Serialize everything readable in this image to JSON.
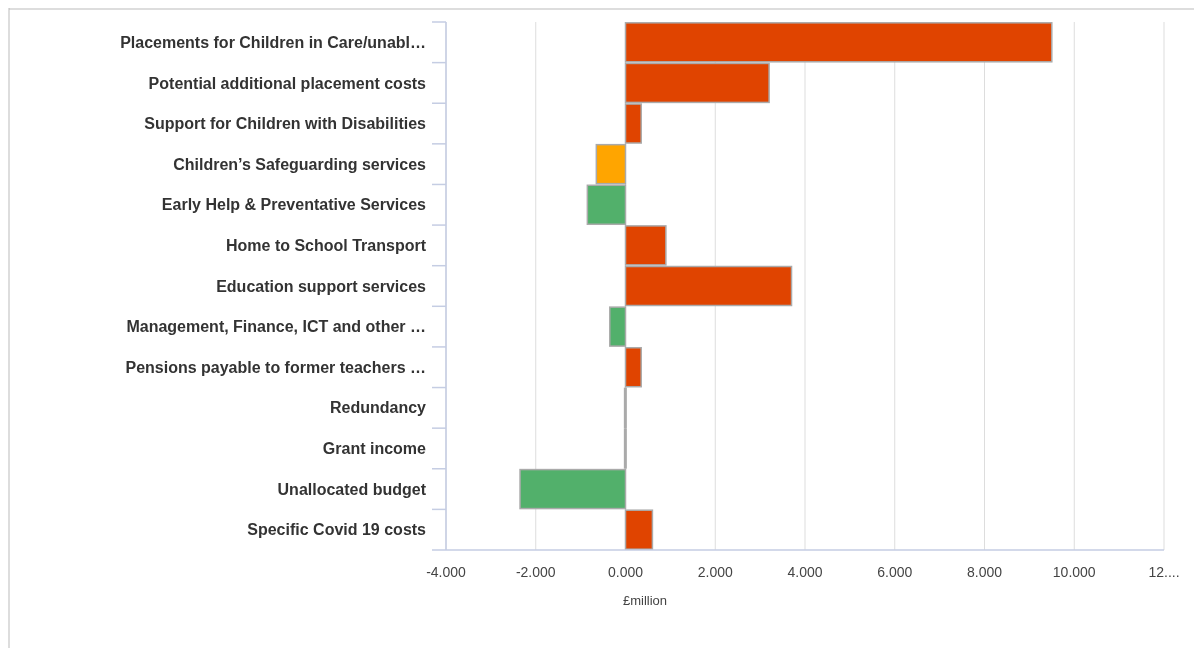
{
  "chart_data": {
    "type": "bar",
    "orientation": "horizontal",
    "xlabel": "£million",
    "categories": [
      "Placements for Children in Care/unabl…",
      "Potential additional placement costs",
      "Support for Children with Disabilities",
      "Children’s Safeguarding services",
      "Early Help & Preventative Services",
      "Home to School Transport",
      "Education support services",
      "Management, Finance, ICT and other …",
      "Pensions payable to former teachers …",
      "Redundancy",
      "Grant income",
      "Unallocated budget",
      "Specific Covid 19 costs"
    ],
    "values": [
      9.5,
      3.2,
      0.35,
      -0.65,
      -0.85,
      0.9,
      3.7,
      -0.35,
      0.35,
      -0.02,
      -0.02,
      -2.35,
      0.6
    ],
    "colors": [
      "#e04400",
      "#e04400",
      "#e04400",
      "#ffa500",
      "#52b06b",
      "#e04400",
      "#e04400",
      "#52b06b",
      "#e04400",
      "#aaaaaa",
      "#aaaaaa",
      "#52b06b",
      "#e04400"
    ],
    "xlim": [
      -4,
      12
    ],
    "xticks": [
      {
        "value": -4,
        "label": "-4.000"
      },
      {
        "value": -2,
        "label": "-2.000"
      },
      {
        "value": 0,
        "label": "0.000"
      },
      {
        "value": 2,
        "label": "2.000"
      },
      {
        "value": 4,
        "label": "4.000"
      },
      {
        "value": 6,
        "label": "6.000"
      },
      {
        "value": 8,
        "label": "8.000"
      },
      {
        "value": 10,
        "label": "10.000"
      },
      {
        "value": 12,
        "label": "12...."
      }
    ],
    "grid": "x"
  }
}
